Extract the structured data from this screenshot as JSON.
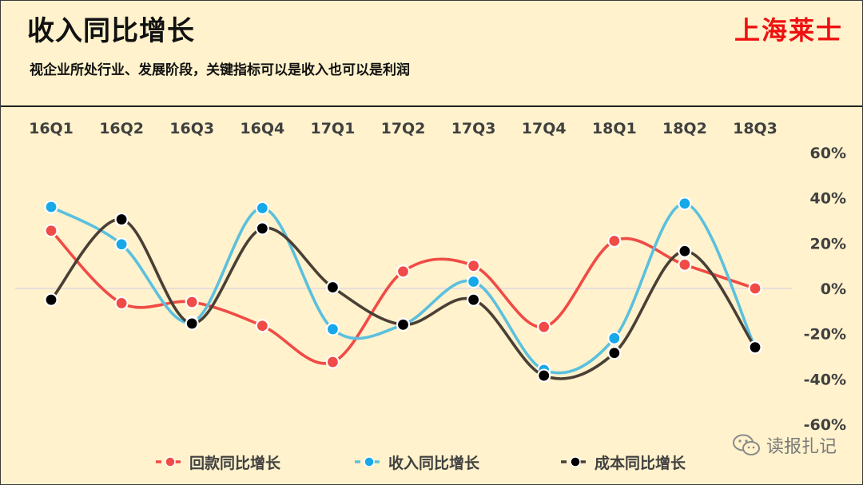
{
  "header": {
    "title": "收入同比增长",
    "brand": "上海莱士",
    "subtitle": "视企业所处行业、发展阶段，关键指标可以是收入也可以是利润"
  },
  "watermark": {
    "text": "读报扎记"
  },
  "chart_data": {
    "type": "line",
    "categories": [
      "16Q1",
      "16Q2",
      "16Q3",
      "16Q4",
      "17Q1",
      "17Q2",
      "17Q3",
      "17Q4",
      "18Q1",
      "18Q2",
      "18Q3"
    ],
    "ylim": [
      -60,
      60
    ],
    "y_ticks": [
      60,
      40,
      20,
      0,
      -20,
      -40,
      -60
    ],
    "y_tick_labels": [
      "60%",
      "40%",
      "20%",
      "0%",
      "-20%",
      "-40%",
      "-60%"
    ],
    "y_unit": "%",
    "x_axis_position": "top",
    "y_axis_position": "right",
    "legend_position": "bottom",
    "grid": false,
    "series": [
      {
        "name": "回款同比增长",
        "color": "#f04b46",
        "values": [
          25.5,
          -6.5,
          -6.0,
          -16.5,
          -32.5,
          7.5,
          10.0,
          -17.0,
          21.0,
          10.5,
          0.0
        ]
      },
      {
        "name": "收入同比增长",
        "color": "#5bc0de",
        "marker": "#16a8e8",
        "values": [
          36.0,
          19.5,
          -15.0,
          35.5,
          -18.0,
          -16.0,
          3.0,
          -36.0,
          -22.0,
          37.5,
          -26.0
        ]
      },
      {
        "name": "成本同比增长",
        "color": "#4a3f35",
        "marker": "#000000",
        "values": [
          -5.0,
          30.5,
          -15.5,
          26.5,
          0.5,
          -16.0,
          -5.0,
          -38.5,
          -28.5,
          16.5,
          -26.0
        ]
      }
    ]
  }
}
